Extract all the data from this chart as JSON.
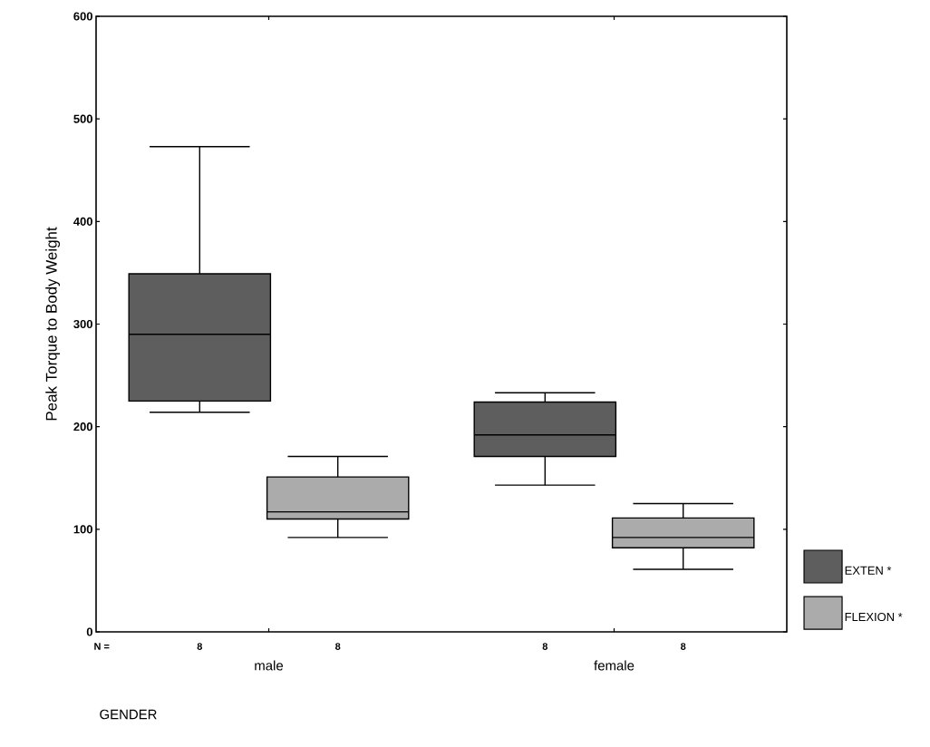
{
  "chart_data": {
    "type": "box",
    "xlabel": "GENDER",
    "ylabel": "Peak Torque to Body Weight",
    "categories": [
      "male",
      "female"
    ],
    "series": [
      {
        "name": "EXTEN *",
        "color": "#5e5e5e",
        "boxes": [
          {
            "low": 214,
            "q1": 225,
            "median": 290,
            "q3": 349,
            "high": 473
          },
          {
            "low": 143,
            "q1": 171,
            "median": 192,
            "q3": 224,
            "high": 233
          }
        ]
      },
      {
        "name": "FLEXION *",
        "color": "#ababab",
        "boxes": [
          {
            "low": 92,
            "q1": 110,
            "median": 117,
            "q3": 151,
            "high": 171
          },
          {
            "low": 61,
            "q1": 82,
            "median": 92,
            "q3": 111,
            "high": 125
          }
        ]
      }
    ],
    "ylim": [
      0,
      600
    ],
    "yticks": [
      0,
      100,
      200,
      300,
      400,
      500,
      600
    ],
    "legend": "bottom right",
    "annotations": [
      "N =",
      "8",
      "8",
      "8",
      "8"
    ]
  }
}
